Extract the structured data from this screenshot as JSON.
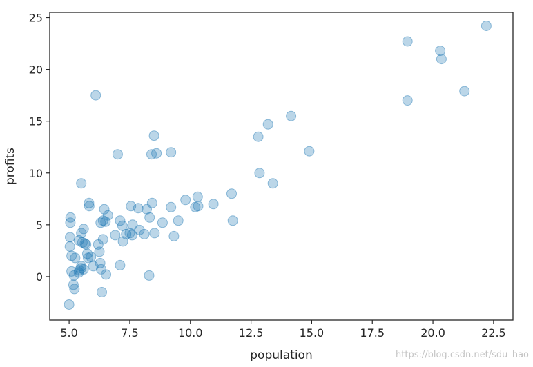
{
  "chart_data": {
    "type": "scatter",
    "xlabel": "population",
    "ylabel": "profits",
    "xlim": [
      4.2,
      23.3
    ],
    "ylim": [
      -4.2,
      25.5
    ],
    "xticks": [
      "5.0",
      "7.5",
      "10.0",
      "12.5",
      "15.0",
      "17.5",
      "20.0",
      "22.5"
    ],
    "yticks": [
      "0",
      "5",
      "10",
      "15",
      "20",
      "25"
    ],
    "grid": false,
    "marker_color": "#1f77b4",
    "marker_alpha": 0.3,
    "points": [
      [
        5.0,
        -2.7
      ],
      [
        5.03,
        2.9
      ],
      [
        5.04,
        3.8
      ],
      [
        5.05,
        5.2
      ],
      [
        5.06,
        5.7
      ],
      [
        5.1,
        2.0
      ],
      [
        5.1,
        0.5
      ],
      [
        5.18,
        -0.8
      ],
      [
        5.2,
        0.1
      ],
      [
        5.22,
        -1.2
      ],
      [
        5.25,
        1.8
      ],
      [
        5.4,
        3.5
      ],
      [
        5.4,
        0.4
      ],
      [
        5.42,
        0.6
      ],
      [
        5.5,
        0.8
      ],
      [
        5.5,
        1.0
      ],
      [
        5.5,
        4.2
      ],
      [
        5.5,
        9.0
      ],
      [
        5.55,
        3.3
      ],
      [
        5.6,
        4.6
      ],
      [
        5.6,
        0.7
      ],
      [
        5.65,
        3.2
      ],
      [
        5.7,
        3.1
      ],
      [
        5.75,
        2.2
      ],
      [
        5.78,
        1.8
      ],
      [
        5.82,
        7.1
      ],
      [
        5.83,
        6.8
      ],
      [
        5.9,
        1.9
      ],
      [
        6.0,
        1.0
      ],
      [
        6.1,
        17.5
      ],
      [
        6.2,
        3.1
      ],
      [
        6.25,
        2.4
      ],
      [
        6.28,
        1.3
      ],
      [
        6.3,
        5.2
      ],
      [
        6.32,
        0.7
      ],
      [
        6.35,
        -1.5
      ],
      [
        6.4,
        3.6
      ],
      [
        6.4,
        5.4
      ],
      [
        6.45,
        6.5
      ],
      [
        6.5,
        5.3
      ],
      [
        6.52,
        0.2
      ],
      [
        6.6,
        5.9
      ],
      [
        6.9,
        4.0
      ],
      [
        7.0,
        11.8
      ],
      [
        7.1,
        5.4
      ],
      [
        7.1,
        1.1
      ],
      [
        7.2,
        4.9
      ],
      [
        7.22,
        3.4
      ],
      [
        7.35,
        4.1
      ],
      [
        7.5,
        4.2
      ],
      [
        7.55,
        6.8
      ],
      [
        7.6,
        4.0
      ],
      [
        7.62,
        5.0
      ],
      [
        7.85,
        6.6
      ],
      [
        7.9,
        4.5
      ],
      [
        8.1,
        4.1
      ],
      [
        8.2,
        6.5
      ],
      [
        8.3,
        0.1
      ],
      [
        8.32,
        5.7
      ],
      [
        8.4,
        11.8
      ],
      [
        8.42,
        7.1
      ],
      [
        8.5,
        13.6
      ],
      [
        8.52,
        4.2
      ],
      [
        8.6,
        11.9
      ],
      [
        8.85,
        5.2
      ],
      [
        9.2,
        12.0
      ],
      [
        9.2,
        6.7
      ],
      [
        9.32,
        3.9
      ],
      [
        9.5,
        5.4
      ],
      [
        9.8,
        7.4
      ],
      [
        10.2,
        6.7
      ],
      [
        10.3,
        7.7
      ],
      [
        10.32,
        6.8
      ],
      [
        10.95,
        7.0
      ],
      [
        11.7,
        8.0
      ],
      [
        11.75,
        5.4
      ],
      [
        12.8,
        13.5
      ],
      [
        12.85,
        10.0
      ],
      [
        13.2,
        14.7
      ],
      [
        13.4,
        9.0
      ],
      [
        14.15,
        15.5
      ],
      [
        14.9,
        12.1
      ],
      [
        18.95,
        22.7
      ],
      [
        18.95,
        17.0
      ],
      [
        20.3,
        21.8
      ],
      [
        20.35,
        21.0
      ],
      [
        21.3,
        17.9
      ],
      [
        22.2,
        24.2
      ]
    ]
  },
  "watermark": "https://blog.csdn.net/sdu_hao"
}
